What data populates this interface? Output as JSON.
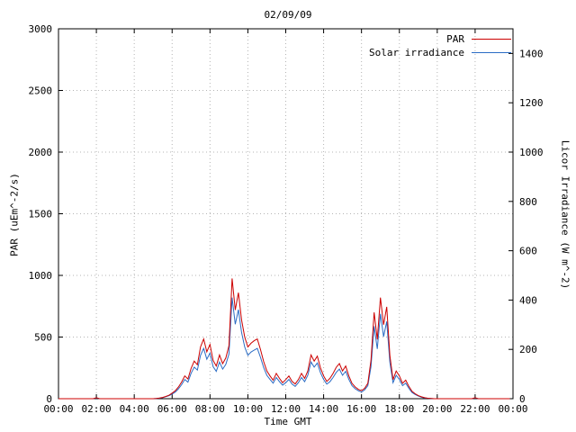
{
  "chart_data": {
    "type": "line",
    "title": "02/09/09",
    "xlabel": "Time GMT",
    "ylabel_left": "PAR (uEm^-2/s)",
    "ylabel_right": "Licor Irradiance (W m^-2)",
    "x_tick_labels": [
      "00:00",
      "02:00",
      "04:00",
      "06:00",
      "08:00",
      "10:00",
      "12:00",
      "14:00",
      "16:00",
      "18:00",
      "20:00",
      "22:00",
      "00:00"
    ],
    "left_axis": {
      "min": 0,
      "max": 3000,
      "ticks": [
        0,
        500,
        1000,
        1500,
        2000,
        2500,
        3000
      ]
    },
    "right_axis": {
      "min": 0,
      "max": 1500,
      "ticks": [
        0,
        200,
        400,
        600,
        800,
        1000,
        1200,
        1400
      ]
    },
    "grid": "dotted",
    "legend_position": "top-right",
    "x_step_minutes": 10,
    "x_total_minutes": 1440,
    "series": [
      {
        "name": "PAR",
        "axis": "left",
        "color": "#cc0000",
        "values": [
          0,
          0,
          0,
          0,
          0,
          0,
          0,
          0,
          0,
          0,
          0,
          0,
          8,
          0,
          0,
          0,
          0,
          0,
          0,
          0,
          0,
          0,
          0,
          0,
          0,
          0,
          0,
          0,
          0,
          0,
          0,
          2,
          5,
          10,
          18,
          28,
          45,
          65,
          95,
          135,
          185,
          160,
          245,
          305,
          275,
          420,
          485,
          380,
          440,
          310,
          265,
          355,
          285,
          330,
          430,
          975,
          720,
          860,
          640,
          500,
          420,
          450,
          470,
          485,
          400,
          300,
          225,
          185,
          150,
          205,
          165,
          130,
          155,
          185,
          140,
          120,
          155,
          205,
          165,
          225,
          355,
          305,
          345,
          250,
          185,
          140,
          165,
          205,
          255,
          285,
          225,
          265,
          185,
          125,
          95,
          75,
          65,
          85,
          125,
          310,
          700,
          480,
          820,
          600,
          745,
          350,
          155,
          225,
          185,
          125,
          150,
          100,
          60,
          40,
          25,
          15,
          8,
          4,
          2,
          0,
          0,
          0,
          0,
          0,
          0,
          0,
          0,
          0,
          0,
          0,
          0,
          0,
          8,
          0,
          0,
          0,
          0,
          0,
          0,
          0,
          0,
          0,
          0,
          0
        ]
      },
      {
        "name": "Solar irradiance",
        "axis": "right",
        "color": "#2a6bc4",
        "values": [
          0,
          0,
          0,
          0,
          0,
          0,
          0,
          0,
          0,
          0,
          0,
          0,
          3,
          0,
          0,
          0,
          0,
          0,
          0,
          0,
          0,
          0,
          0,
          0,
          0,
          0,
          0,
          0,
          0,
          0,
          0,
          1,
          2,
          4,
          8,
          12,
          19,
          27,
          40,
          57,
          78,
          67,
          103,
          128,
          116,
          176,
          204,
          160,
          185,
          130,
          111,
          149,
          120,
          139,
          181,
          410,
          302,
          361,
          269,
          210,
          176,
          189,
          197,
          204,
          168,
          126,
          95,
          78,
          63,
          86,
          69,
          55,
          65,
          78,
          59,
          50,
          65,
          86,
          69,
          95,
          149,
          128,
          145,
          105,
          78,
          59,
          69,
          86,
          107,
          120,
          95,
          111,
          78,
          53,
          40,
          32,
          27,
          36,
          53,
          130,
          294,
          202,
          344,
          252,
          313,
          147,
          65,
          95,
          78,
          53,
          63,
          42,
          25,
          17,
          11,
          6,
          3,
          2,
          1,
          0,
          0,
          0,
          0,
          0,
          0,
          0,
          0,
          0,
          0,
          0,
          0,
          0,
          3,
          0,
          0,
          0,
          0,
          0,
          0,
          0,
          0,
          0,
          0,
          0
        ]
      }
    ]
  },
  "colors": {
    "grid": "#b4b4b4",
    "border": "#000000",
    "background": "#ffffff"
  }
}
